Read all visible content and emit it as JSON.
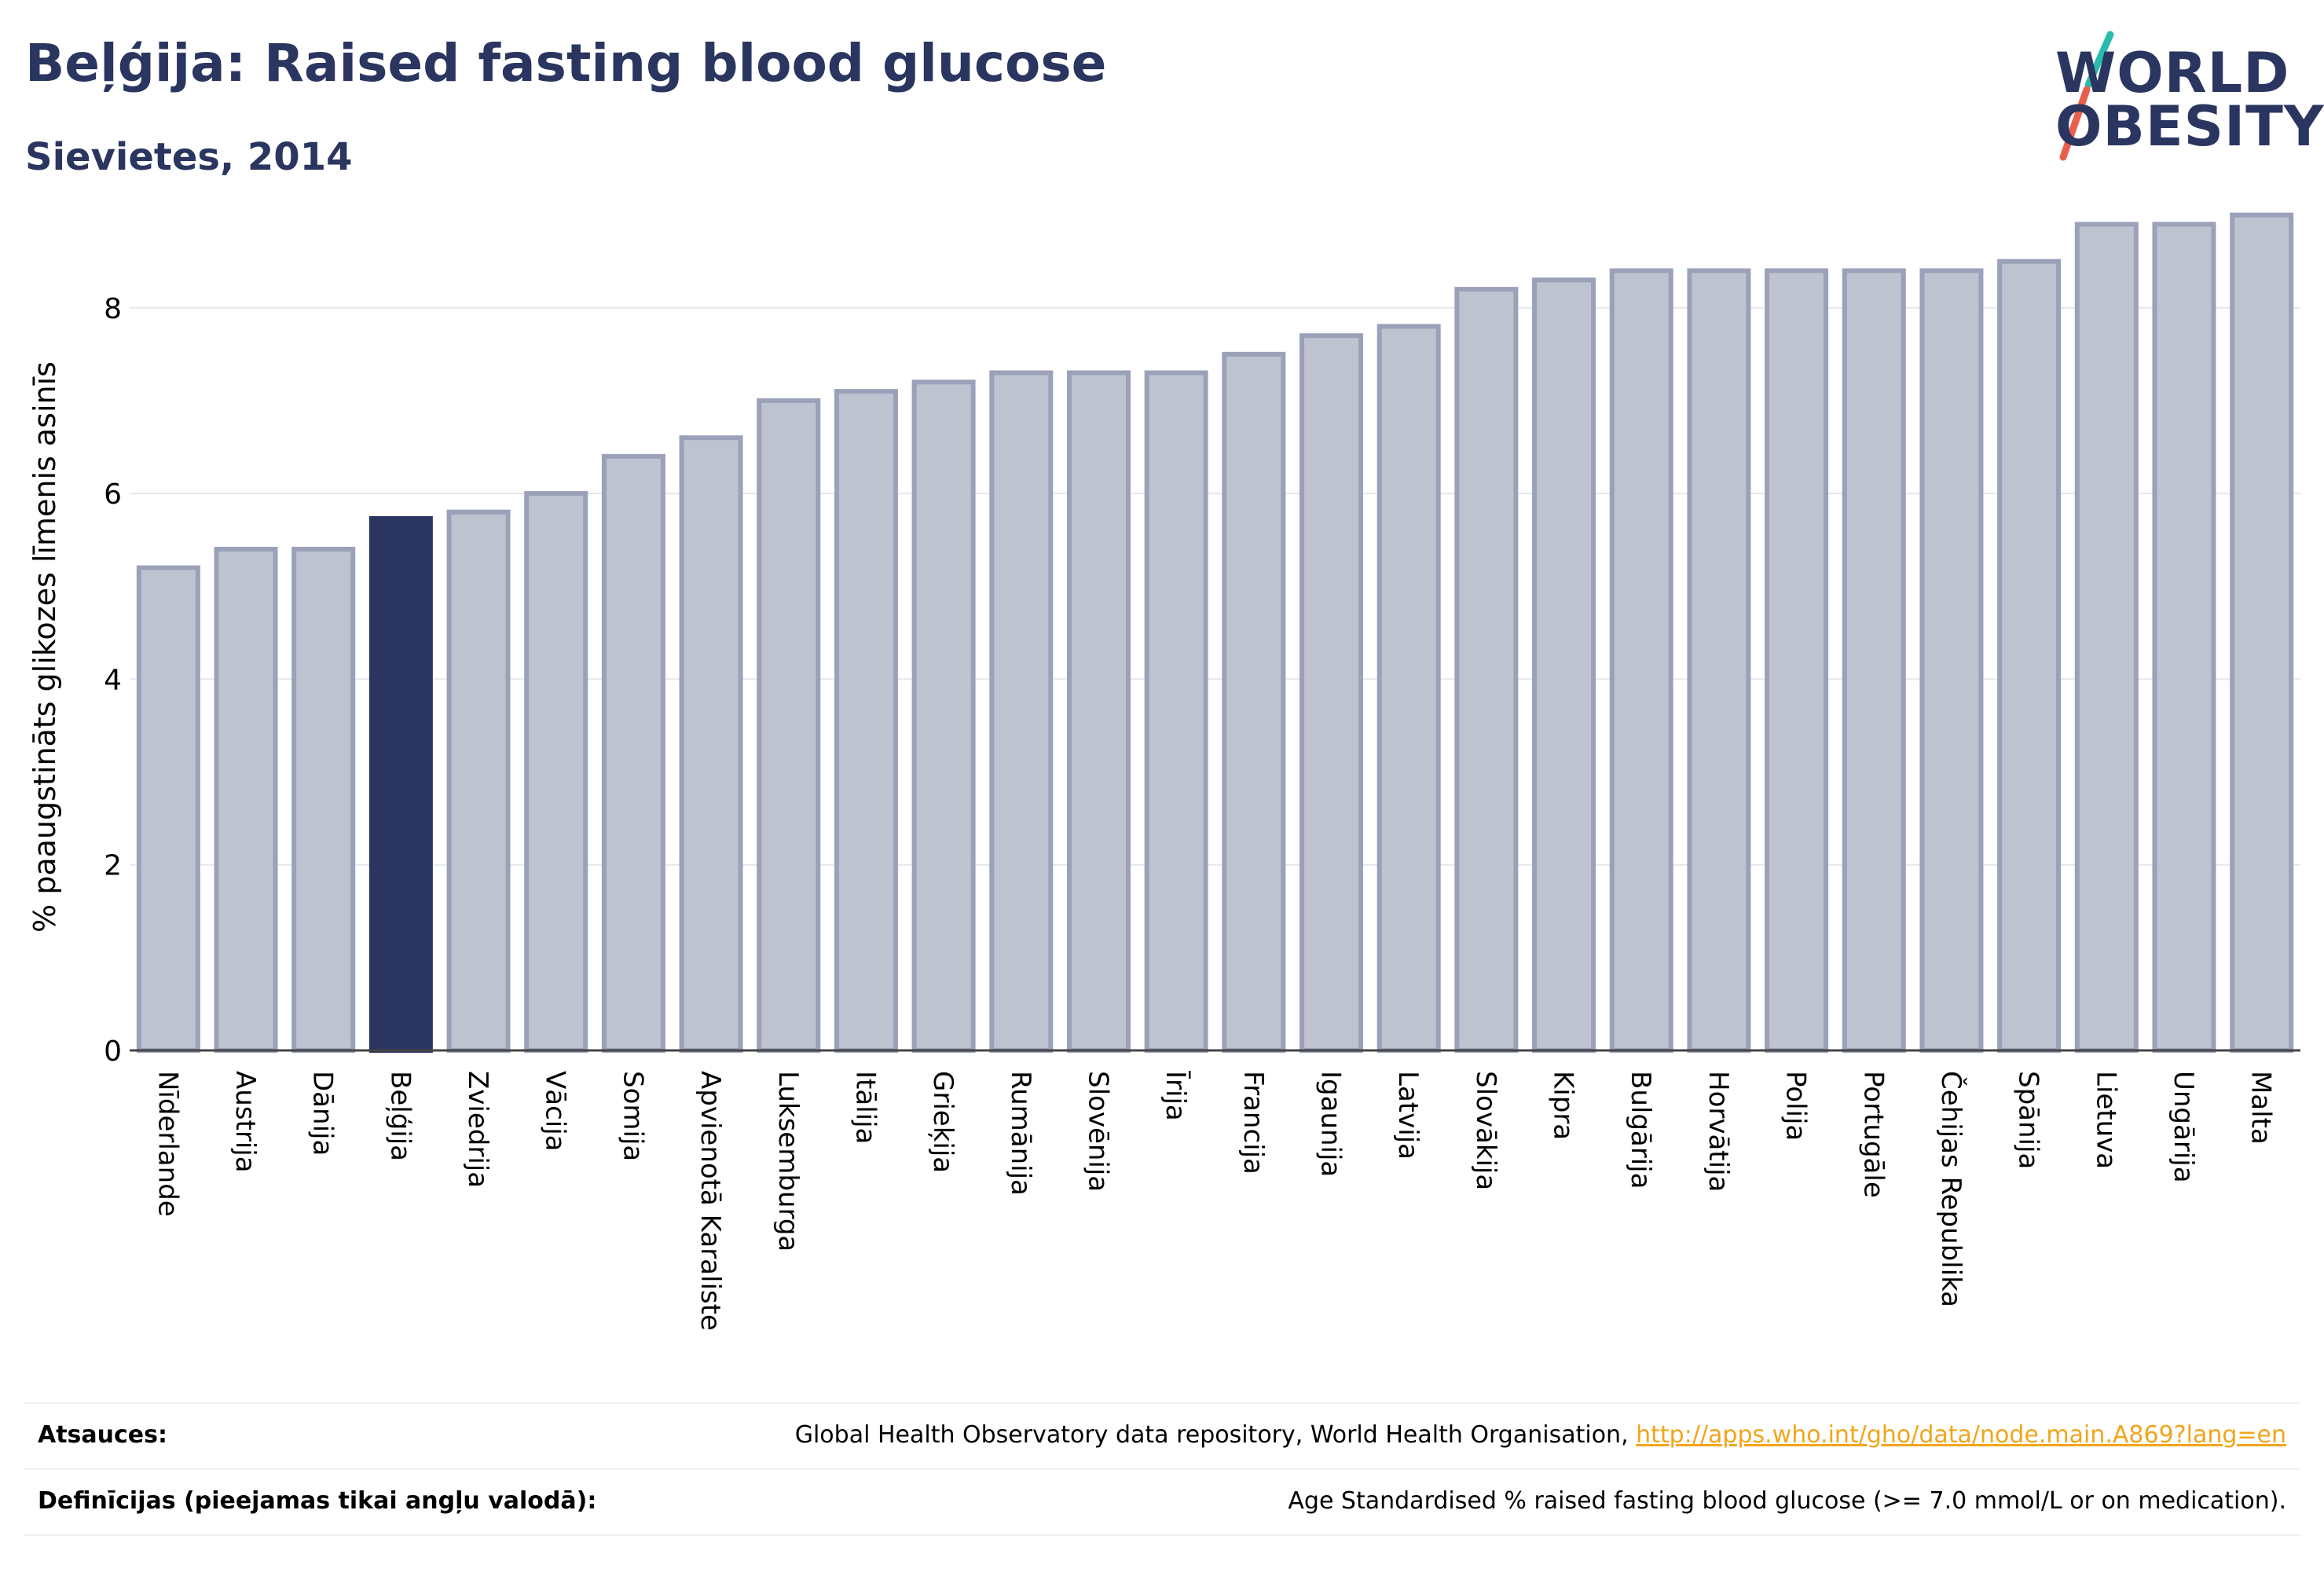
{
  "header": {
    "title": "Beļģija: Raised fasting blood glucose",
    "subtitle": "Sievietes, 2014"
  },
  "logo": {
    "line1": "WORLD",
    "line2": "OBESITY",
    "text_color": "#2a3560",
    "slash_colors": [
      "#2bbbad",
      "#e8604c"
    ]
  },
  "chart_data": {
    "type": "bar",
    "title": "Beļģija: Raised fasting blood glucose",
    "subtitle": "Sievietes, 2014",
    "xlabel": "",
    "ylabel": "% paaugstināts glikozes līmenis asinīs",
    "ylim": [
      0,
      9.2
    ],
    "yticks": [
      0,
      2,
      4,
      6,
      8
    ],
    "grid": true,
    "highlight": "Beļģija",
    "colors": {
      "bar": "#bfc3d0",
      "bar_border": "#9aa1b8",
      "highlight": "#2a3560"
    },
    "categories": [
      "Nīderlande",
      "Austrija",
      "Dānija",
      "Beļģija",
      "Zviedrija",
      "Vācija",
      "Somija",
      "Apvienotā Karaliste",
      "Luksemburga",
      "Itālija",
      "Grieķija",
      "Rumānija",
      "Slovēnija",
      "Īrija",
      "Francija",
      "Igaunija",
      "Latvija",
      "Slovākija",
      "Kipra",
      "Bulgārija",
      "Horvātija",
      "Polija",
      "Portugāle",
      "Čehijas Republika",
      "Spānija",
      "Lietuva",
      "Ungārija",
      "Malta"
    ],
    "values": [
      5.2,
      5.4,
      5.4,
      5.73,
      5.8,
      6.0,
      6.4,
      6.6,
      7.0,
      7.1,
      7.2,
      7.3,
      7.3,
      7.3,
      7.5,
      7.7,
      7.8,
      8.2,
      8.3,
      8.4,
      8.4,
      8.4,
      8.4,
      8.4,
      8.5,
      8.9,
      8.9,
      9.0
    ]
  },
  "sources": {
    "label": "Atsauces:",
    "text": "Global Health Observatory data repository, World Health Organisation, ",
    "link": "http://apps.who.int/gho/data/node.main.A869?lang=en"
  },
  "definitions": {
    "label": "Definīcijas (pieejamas tikai angļu valodā):",
    "text": "Age Standardised % raised fasting blood glucose (>= 7.0 mmol/L or on medication)."
  }
}
